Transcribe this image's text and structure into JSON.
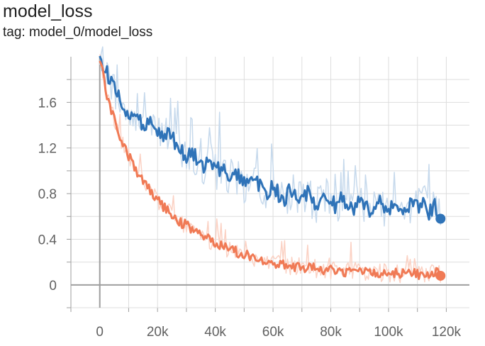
{
  "header": {
    "title": "model_loss",
    "subtitle": "tag: model_0/model_loss"
  },
  "colors": {
    "series_0": "#2f73b8",
    "series_0_raw": "#c6d9ec",
    "series_1": "#f07a55",
    "series_1_raw": "#fbd1c3",
    "grid": "#dddddd",
    "axis": "#9e9e9e"
  },
  "chart_data": {
    "type": "line",
    "title": "model_loss",
    "xlabel": "",
    "ylabel": "",
    "xlim": [
      -10000,
      128000
    ],
    "ylim": [
      -0.2,
      2.0
    ],
    "xticks": [
      0,
      20000,
      40000,
      60000,
      80000,
      100000,
      120000
    ],
    "xtick_labels": [
      "0",
      "20k",
      "40k",
      "60k",
      "80k",
      "100k",
      "120k"
    ],
    "yticks": [
      0,
      0.4,
      0.8,
      1.2,
      1.6
    ],
    "ytick_labels": [
      "0",
      "0.4",
      "0.8",
      "1.2",
      "1.6"
    ],
    "grid": true,
    "legend": "none",
    "series": [
      {
        "color": "#2f73b8",
        "x": [
          0,
          2000,
          4000,
          6000,
          8000,
          10000,
          12000,
          14000,
          16000,
          18000,
          20000,
          22000,
          24000,
          26000,
          28000,
          30000,
          32000,
          34000,
          36000,
          38000,
          40000,
          42000,
          44000,
          46000,
          48000,
          50000,
          52000,
          54000,
          56000,
          58000,
          60000,
          62000,
          64000,
          66000,
          68000,
          70000,
          72000,
          74000,
          76000,
          78000,
          80000,
          82000,
          84000,
          86000,
          88000,
          90000,
          92000,
          94000,
          96000,
          98000,
          100000,
          102000,
          104000,
          106000,
          108000,
          110000,
          112000,
          114000,
          116000,
          118000
        ],
        "y": [
          2.0,
          1.88,
          1.78,
          1.68,
          1.56,
          1.52,
          1.47,
          1.44,
          1.38,
          1.41,
          1.33,
          1.29,
          1.34,
          1.24,
          1.21,
          1.12,
          1.17,
          1.07,
          1.04,
          1.09,
          0.99,
          1.03,
          0.96,
          0.92,
          0.98,
          0.89,
          0.86,
          0.92,
          0.83,
          0.8,
          0.88,
          0.79,
          0.75,
          0.83,
          0.77,
          0.73,
          0.81,
          0.74,
          0.7,
          0.79,
          0.72,
          0.69,
          0.77,
          0.71,
          0.67,
          0.75,
          0.7,
          0.66,
          0.74,
          0.69,
          0.65,
          0.73,
          0.68,
          0.66,
          0.72,
          0.67,
          0.74,
          0.63,
          0.7,
          0.58
        ]
      },
      {
        "color": "#f07a55",
        "x": [
          0,
          2000,
          4000,
          6000,
          8000,
          10000,
          12000,
          14000,
          16000,
          18000,
          20000,
          22000,
          24000,
          26000,
          28000,
          30000,
          32000,
          34000,
          36000,
          38000,
          40000,
          42000,
          44000,
          46000,
          48000,
          50000,
          52000,
          54000,
          56000,
          58000,
          60000,
          62000,
          64000,
          66000,
          68000,
          70000,
          72000,
          74000,
          76000,
          78000,
          80000,
          82000,
          84000,
          86000,
          88000,
          90000,
          92000,
          94000,
          96000,
          98000,
          100000,
          102000,
          104000,
          106000,
          108000,
          110000,
          112000,
          114000,
          116000,
          118000
        ],
        "y": [
          2.0,
          1.72,
          1.52,
          1.38,
          1.24,
          1.13,
          1.03,
          0.95,
          0.87,
          0.8,
          0.74,
          0.69,
          0.64,
          0.59,
          0.55,
          0.52,
          0.48,
          0.45,
          0.42,
          0.39,
          0.37,
          0.34,
          0.32,
          0.3,
          0.28,
          0.26,
          0.25,
          0.23,
          0.22,
          0.21,
          0.2,
          0.19,
          0.18,
          0.17,
          0.16,
          0.155,
          0.15,
          0.145,
          0.14,
          0.135,
          0.13,
          0.125,
          0.12,
          0.118,
          0.115,
          0.112,
          0.11,
          0.108,
          0.105,
          0.103,
          0.1,
          0.1,
          0.098,
          0.14,
          0.096,
          0.094,
          0.095,
          0.093,
          0.12,
          0.08
        ]
      }
    ]
  }
}
